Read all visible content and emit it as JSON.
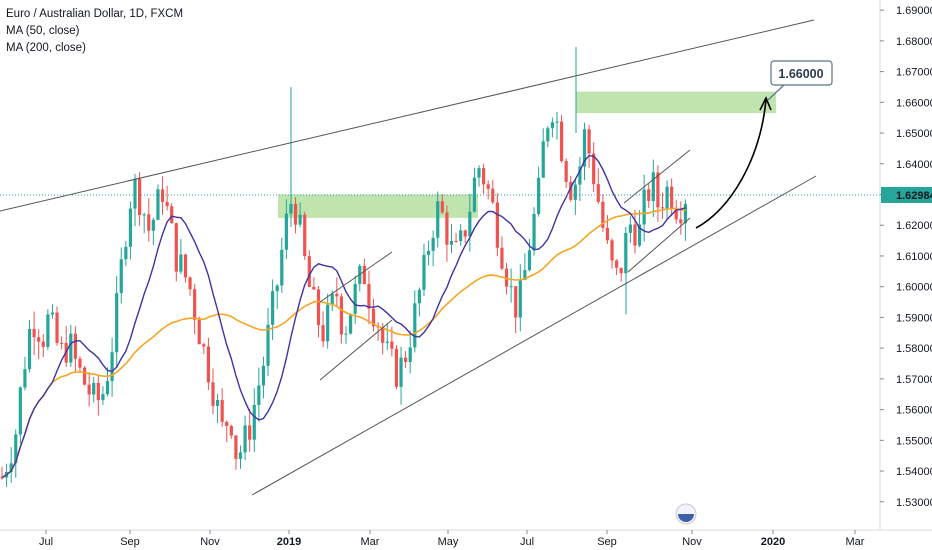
{
  "legend": {
    "symbol": "Euro / Australian Dollar, 1D, FXCM",
    "ma50": "MA (50, close)",
    "ma200": "MA (200, close)"
  },
  "colors": {
    "up": "#26a69a",
    "down": "#ef5350",
    "ma50": "#3f33a3",
    "ma200": "#f5a623",
    "trend": "#7a7a7a",
    "zone": "#b5dfa0",
    "price_line": "#26a69a",
    "price_label_bg": "#26a69a"
  },
  "chart_data": {
    "type": "candlestick",
    "y_range": [
      1.527,
      1.692
    ],
    "y_ticks": [
      "1.69000",
      "1.68000",
      "1.67000",
      "1.66000",
      "1.65000",
      "1.64000",
      "1.63000",
      "1.62000",
      "1.61000",
      "1.60000",
      "1.59000",
      "1.58000",
      "1.57000",
      "1.56000",
      "1.55000",
      "1.54000",
      "1.53000"
    ],
    "y_tick_values": [
      1.69,
      1.68,
      1.67,
      1.66,
      1.65,
      1.64,
      1.63,
      1.62,
      1.61,
      1.6,
      1.59,
      1.58,
      1.57,
      1.56,
      1.55,
      1.54,
      1.53
    ],
    "x_ticks": [
      "Jul",
      "Sep",
      "Nov",
      "2019",
      "Mar",
      "May",
      "Jul",
      "Sep",
      "Nov",
      "2020",
      "Mar"
    ],
    "x_tick_bold": [
      false,
      false,
      false,
      true,
      false,
      false,
      false,
      false,
      false,
      true,
      false
    ],
    "current_price": "1.62984",
    "current_price_value": 1.62984,
    "target_label": "1.66000",
    "target_value": 1.66,
    "price_path": [
      1.538,
      1.545,
      1.552,
      1.57,
      1.585,
      1.59,
      1.583,
      1.59,
      1.582,
      1.578,
      1.582,
      1.575,
      1.57,
      1.566,
      1.562,
      1.565,
      1.575,
      1.59,
      1.61,
      1.628,
      1.633,
      1.626,
      1.618,
      1.625,
      1.632,
      1.62,
      1.61,
      1.605,
      1.6,
      1.59,
      1.58,
      1.572,
      1.562,
      1.552,
      1.56,
      1.545,
      1.548,
      1.555,
      1.565,
      1.575,
      1.588,
      1.6,
      1.615,
      1.628,
      1.625,
      1.61,
      1.598,
      1.59,
      1.585,
      1.592,
      1.598,
      1.585,
      1.593,
      1.6,
      1.605,
      1.595,
      1.59,
      1.58,
      1.575,
      1.572,
      1.576,
      1.585,
      1.595,
      1.605,
      1.618,
      1.625,
      1.622,
      1.612,
      1.61,
      1.618,
      1.628,
      1.64,
      1.635,
      1.628,
      1.618,
      1.608,
      1.598,
      1.592,
      1.604,
      1.618,
      1.628,
      1.65,
      1.66,
      1.652,
      1.64,
      1.632,
      1.636,
      1.65,
      1.64,
      1.628,
      1.615,
      1.606,
      1.602,
      1.614,
      1.622,
      1.616,
      1.628,
      1.634,
      1.626,
      1.632,
      1.63,
      1.625,
      1.63
    ]
  }
}
